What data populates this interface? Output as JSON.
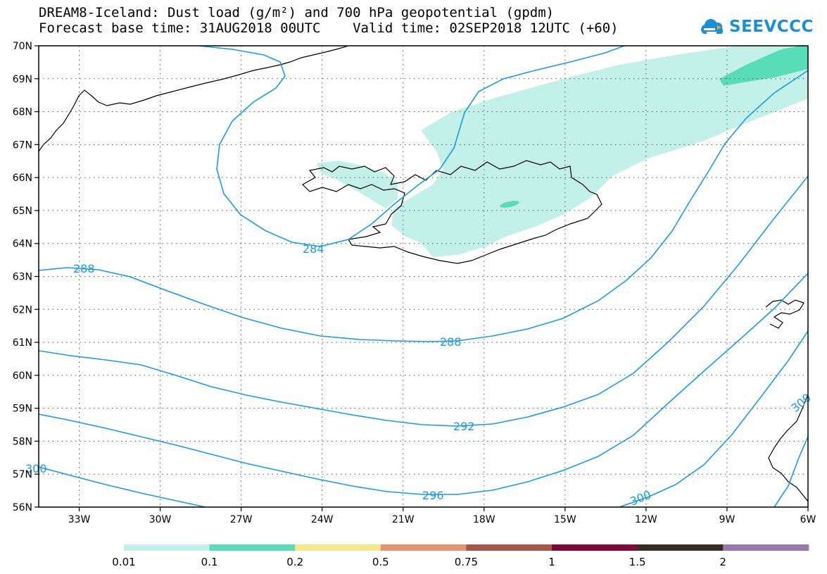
{
  "title_line1": "DREAM8-Iceland: Dust load (g/m²) and 700 hPa geopotential (gpdm)",
  "title_line2": "Forecast base time: 31AUG2018 00UTC    Valid time: 02SEP2018 12UTC (+60)",
  "logo": {
    "text": "SEEVCCC",
    "color": "#1a8fd8",
    "icon": "cloud-icon"
  },
  "map": {
    "lat_range": [
      56,
      70
    ],
    "lon_range": [
      -34.5,
      -6
    ],
    "lat_labels": [
      "70N",
      "69N",
      "68N",
      "67N",
      "66N",
      "65N",
      "64N",
      "63N",
      "62N",
      "61N",
      "60N",
      "59N",
      "58N",
      "57N",
      "56N"
    ],
    "lon_labels": [
      "33W",
      "30W",
      "27W",
      "24W",
      "21W",
      "18W",
      "15W",
      "12W",
      "9W",
      "6W"
    ],
    "grid": "dotted",
    "contour_color": "#1a9be6",
    "contour_labels": [
      "284",
      "288",
      "288",
      "292",
      "296",
      "300",
      "300",
      "300"
    ]
  },
  "colorbar": {
    "colors": [
      "#c3f0e8",
      "#59ddb9",
      "#f6e98a",
      "#e89270",
      "#a8554a",
      "#810a35",
      "#3a2a22",
      "#9b78ab"
    ],
    "labels": [
      "0.01",
      "0.1",
      "0.2",
      "0.5",
      "0.75",
      "1",
      "1.5",
      "2"
    ]
  }
}
